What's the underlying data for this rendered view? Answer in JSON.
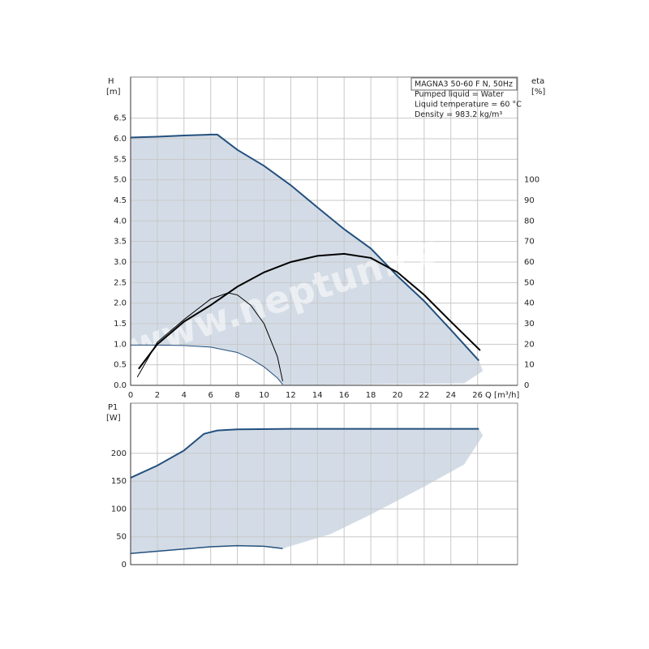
{
  "chart_data": [
    {
      "type": "line",
      "ylabel": "H",
      "yunit": "[m]",
      "y2label": "eta",
      "y2unit": "[%]",
      "xlabel": "Q [m³/h]",
      "info": [
        "MAGNA3 50-60 F N, 50Hz",
        "Pumped liquid = Water",
        "Liquid temperature = 60 °C",
        "Density = 983.2 kg/m³"
      ],
      "watermark": "www.neptun.cz",
      "xlim": [
        0,
        29
      ],
      "ylim": [
        0,
        7.5
      ],
      "y2lim": [
        0,
        150
      ],
      "xticks": [
        0,
        2,
        4,
        6,
        8,
        10,
        12,
        14,
        16,
        18,
        20,
        22,
        24,
        26
      ],
      "yticks": [
        {
          "value": 0,
          "label": "0.0"
        },
        0.5,
        {
          "value": 1,
          "label": "1.0"
        },
        1.5,
        {
          "value": 2,
          "label": "2.0"
        },
        2.5,
        {
          "value": 3,
          "label": "3.0"
        },
        3.5,
        {
          "value": 4,
          "label": "4.0"
        },
        4.5,
        {
          "value": 5,
          "label": "5.0"
        },
        5.5,
        {
          "value": 6,
          "label": "6.0"
        },
        6.5
      ],
      "y2ticks": [
        0,
        10,
        20,
        30,
        40,
        50,
        60,
        70,
        80,
        90,
        100
      ],
      "grid": true,
      "region": {
        "color": "#d3dce6",
        "x": [
          0,
          2,
          4,
          6,
          6.5,
          8,
          10,
          12,
          14,
          16,
          18,
          20,
          22,
          24,
          26.1,
          26.4,
          25,
          11.4,
          11,
          10,
          9,
          8,
          6,
          4,
          2,
          0
        ],
        "values": [
          6.03,
          6.05,
          6.08,
          6.1,
          6.1,
          5.73,
          5.34,
          4.87,
          4.33,
          3.8,
          3.33,
          2.66,
          2.05,
          1.35,
          0.6,
          0.35,
          0.05,
          0,
          0.18,
          0.45,
          0.65,
          0.8,
          0.93,
          0.97,
          0.98,
          0.98
        ]
      },
      "series": [
        {
          "color": "#24507e",
          "linewidth": 2,
          "x": [
            0,
            2,
            4,
            6,
            6.5,
            8,
            10,
            12,
            14,
            16,
            18,
            20,
            22,
            24,
            26.1
          ],
          "values": [
            6.03,
            6.05,
            6.08,
            6.1,
            6.1,
            5.73,
            5.34,
            4.87,
            4.33,
            3.8,
            3.33,
            2.66,
            2.05,
            1.35,
            0.6
          ]
        },
        {
          "color": "#24507e",
          "linewidth": 1,
          "x": [
            0,
            2,
            4,
            6,
            8,
            9,
            10,
            11,
            11.4
          ],
          "values": [
            0.98,
            0.98,
            0.97,
            0.93,
            0.8,
            0.65,
            0.45,
            0.18,
            0.02
          ]
        },
        {
          "color": "#000000",
          "linewidth": 2,
          "axis": "y2",
          "x": [
            0.6,
            2,
            4,
            6,
            8,
            10,
            12,
            14,
            16,
            18,
            20,
            22,
            24,
            26.2
          ],
          "values": [
            8,
            20,
            31,
            39,
            48,
            55,
            60,
            63,
            64,
            62,
            55,
            44,
            31,
            17
          ]
        },
        {
          "color": "#000000",
          "linewidth": 1,
          "axis": "y2",
          "x": [
            0.5,
            2,
            4,
            6,
            7.3,
            8,
            9,
            10,
            11,
            11.4
          ],
          "values": [
            4,
            21,
            32,
            42,
            45,
            44,
            39,
            30,
            14,
            2
          ]
        }
      ]
    },
    {
      "type": "line",
      "ylabel": "P1",
      "yunit": "[W]",
      "xlim": [
        0,
        29
      ],
      "ylim": [
        0,
        290
      ],
      "xticks": [
        0,
        2,
        4,
        6,
        8,
        10,
        12,
        14,
        16,
        18,
        20,
        22,
        24,
        26
      ],
      "yticks": [
        0,
        50,
        100,
        150,
        200
      ],
      "grid": true,
      "region": {
        "color": "#d3dce6",
        "x": [
          0,
          2,
          4,
          5.5,
          6.5,
          8,
          12,
          16,
          20,
          26.1,
          26.4,
          25,
          22,
          18,
          15,
          11.4,
          10,
          8,
          6,
          4,
          2,
          0
        ],
        "values": [
          156,
          178,
          205,
          235,
          241,
          243,
          244,
          244,
          244,
          244,
          232,
          180,
          140,
          90,
          55,
          29,
          33,
          34,
          32,
          28,
          24,
          20
        ]
      },
      "series": [
        {
          "color": "#24507e",
          "linewidth": 2,
          "x": [
            0,
            2,
            4,
            5.5,
            6.5,
            8,
            12,
            16,
            20,
            26.1
          ],
          "values": [
            156,
            178,
            205,
            235,
            241,
            243,
            244,
            244,
            244,
            244
          ]
        },
        {
          "color": "#24507e",
          "linewidth": 1.5,
          "x": [
            0,
            2,
            4,
            6,
            8,
            10,
            11.4
          ],
          "values": [
            20,
            24,
            28,
            32,
            34,
            33,
            29
          ]
        }
      ]
    }
  ]
}
